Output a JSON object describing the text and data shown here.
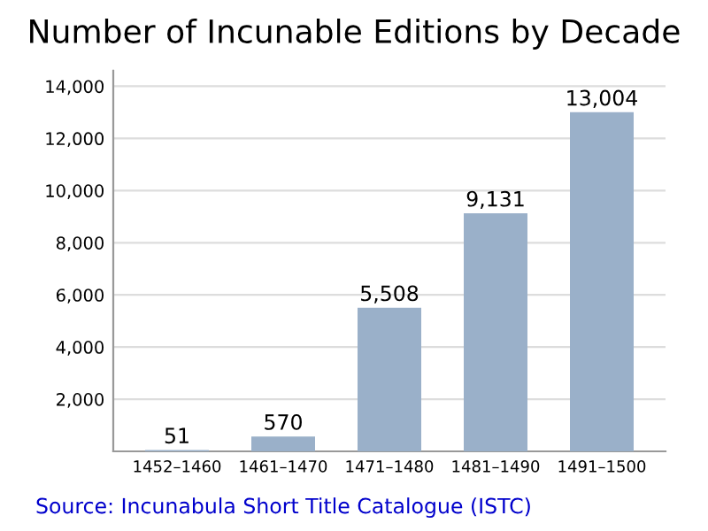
{
  "chart_data": {
    "type": "bar",
    "title": "Number of Incunable Editions by Decade",
    "categories": [
      "1452–1460",
      "1461–1470",
      "1471–1480",
      "1481–1490",
      "1491–1500"
    ],
    "values": [
      51,
      570,
      5508,
      9131,
      13004
    ],
    "color": "#9ab0c9",
    "ylim": [
      0,
      14600
    ],
    "yticks": [
      {
        "value": 2000,
        "label": "2,000"
      },
      {
        "value": 4000,
        "label": "4,000"
      },
      {
        "value": 6000,
        "label": "6,000"
      },
      {
        "value": 8000,
        "label": "8,000"
      },
      {
        "value": 10000,
        "label": "10,000"
      },
      {
        "value": 12000,
        "label": "12,000"
      },
      {
        "value": 14000,
        "label": "14,000"
      }
    ],
    "value_labels": [
      "51",
      "570",
      "5,508",
      "9,131",
      "13,004"
    ],
    "grid": "y",
    "annotations": [
      "Source: Incunabula Short Title Catalogue (ISTC)"
    ]
  }
}
